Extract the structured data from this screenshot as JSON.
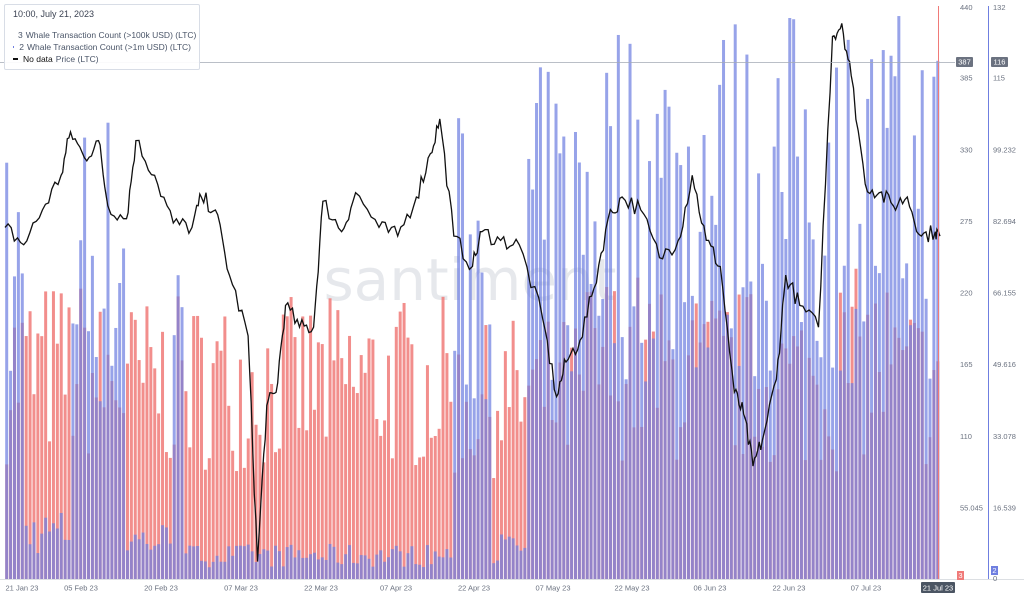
{
  "tooltip": {
    "date": "10:00, July 21, 2023",
    "rows": [
      {
        "value": "3",
        "label": "Whale Transaction Count (>100k USD) (LTC)",
        "color": "#f07a78"
      },
      {
        "value": "2",
        "label": "Whale Transaction Count (>1m USD) (LTC)",
        "color": "#6f7fe0"
      },
      {
        "value": "No data",
        "label": "Price (LTC)",
        "color": "#111111"
      }
    ]
  },
  "watermark": "santiment",
  "chart_data": {
    "type": "bar+line",
    "x_tick_labels": [
      "21 Jan 23",
      "05 Feb 23",
      "20 Feb 23",
      "07 Mar 23",
      "22 Mar 23",
      "07 Apr 23",
      "22 Apr 23",
      "07 May 23",
      "22 May 23",
      "06 Jun 23",
      "22 Jun 23",
      "07 Jul 23",
      "21 Jul 23"
    ],
    "x_range": [
      "2023-01-21",
      "2023-07-21"
    ],
    "axes": {
      "left_red": {
        "ticks": [
          "440",
          "385",
          "330",
          "275",
          "220",
          "165",
          "110",
          "55.045"
        ],
        "ylim": [
          0,
          440
        ],
        "current_marker": "3",
        "crosshair_label": "387"
      },
      "right_blue": {
        "ticks": [
          "132",
          "115",
          "99.232",
          "82.694",
          "66.155",
          "49.616",
          "33.078",
          "16.539",
          "0"
        ],
        "ylim": [
          0,
          132
        ],
        "current_marker": "2",
        "crosshair_label": "116"
      }
    },
    "series": [
      {
        "name": "Whale Transaction Count (>100k USD) (LTC)",
        "color": "#f07a78",
        "axis": "left_red",
        "segments": [
          {
            "from": 0.0,
            "to": 0.09,
            "level": 160
          },
          {
            "from": 0.09,
            "to": 0.13,
            "level": 150
          },
          {
            "from": 0.13,
            "to": 0.3,
            "level": 150
          },
          {
            "from": 0.3,
            "to": 0.48,
            "level": 150
          },
          {
            "from": 0.48,
            "to": 0.52,
            "level": 135
          },
          {
            "from": 0.52,
            "to": 0.62,
            "level": 140
          },
          {
            "from": 0.62,
            "to": 0.69,
            "level": 165
          },
          {
            "from": 0.69,
            "to": 0.8,
            "level": 155
          },
          {
            "from": 0.8,
            "to": 0.89,
            "level": 150
          },
          {
            "from": 0.89,
            "to": 0.95,
            "level": 165
          },
          {
            "from": 0.95,
            "to": 1.0,
            "level": 150
          }
        ]
      },
      {
        "name": "Whale Transaction Count (>1m USD) (LTC)",
        "color": "#6f7fe0",
        "axis": "right_blue",
        "segments": [
          {
            "from": 0.0,
            "to": 0.02,
            "level": 75
          },
          {
            "from": 0.02,
            "to": 0.07,
            "level": 12
          },
          {
            "from": 0.07,
            "to": 0.13,
            "level": 82
          },
          {
            "from": 0.13,
            "to": 0.18,
            "level": 10
          },
          {
            "from": 0.18,
            "to": 0.19,
            "level": 108
          },
          {
            "from": 0.19,
            "to": 0.48,
            "level": 6
          },
          {
            "from": 0.48,
            "to": 0.52,
            "level": 80
          },
          {
            "from": 0.52,
            "to": 0.56,
            "level": 8
          },
          {
            "from": 0.56,
            "to": 0.62,
            "level": 88
          },
          {
            "from": 0.62,
            "to": 1.0,
            "level": 98
          }
        ]
      },
      {
        "name": "Price (LTC)",
        "color": "#111111",
        "points": [
          [
            0.0,
            81
          ],
          [
            0.02,
            77
          ],
          [
            0.04,
            85
          ],
          [
            0.06,
            93
          ],
          [
            0.07,
            103
          ],
          [
            0.085,
            97
          ],
          [
            0.1,
            101
          ],
          [
            0.11,
            86
          ],
          [
            0.13,
            83
          ],
          [
            0.14,
            101
          ],
          [
            0.16,
            93
          ],
          [
            0.18,
            82
          ],
          [
            0.2,
            81
          ],
          [
            0.21,
            88
          ],
          [
            0.225,
            85
          ],
          [
            0.24,
            70
          ],
          [
            0.26,
            56
          ],
          [
            0.27,
            4
          ],
          [
            0.28,
            40
          ],
          [
            0.29,
            43
          ],
          [
            0.3,
            63
          ],
          [
            0.315,
            58
          ],
          [
            0.33,
            58
          ],
          [
            0.34,
            87
          ],
          [
            0.36,
            80
          ],
          [
            0.375,
            89
          ],
          [
            0.4,
            81
          ],
          [
            0.42,
            79
          ],
          [
            0.44,
            88
          ],
          [
            0.455,
            98
          ],
          [
            0.465,
            106
          ],
          [
            0.48,
            79
          ],
          [
            0.5,
            72
          ],
          [
            0.51,
            80
          ],
          [
            0.53,
            78
          ],
          [
            0.55,
            77
          ],
          [
            0.575,
            60
          ],
          [
            0.59,
            42
          ],
          [
            0.6,
            50
          ],
          [
            0.615,
            55
          ],
          [
            0.63,
            67
          ],
          [
            0.645,
            83
          ],
          [
            0.66,
            88
          ],
          [
            0.68,
            85
          ],
          [
            0.7,
            74
          ],
          [
            0.72,
            78
          ],
          [
            0.735,
            93
          ],
          [
            0.75,
            78
          ],
          [
            0.765,
            72
          ],
          [
            0.78,
            43
          ],
          [
            0.79,
            38
          ],
          [
            0.8,
            26
          ],
          [
            0.81,
            32
          ],
          [
            0.825,
            46
          ],
          [
            0.835,
            70
          ],
          [
            0.85,
            63
          ],
          [
            0.87,
            58
          ],
          [
            0.885,
            125
          ],
          [
            0.895,
            128
          ],
          [
            0.905,
            116
          ],
          [
            0.92,
            91
          ],
          [
            0.935,
            89
          ],
          [
            0.95,
            86
          ],
          [
            0.965,
            88
          ],
          [
            0.98,
            79
          ],
          [
            0.995,
            80
          ],
          [
            1.0,
            79
          ]
        ]
      }
    ]
  }
}
